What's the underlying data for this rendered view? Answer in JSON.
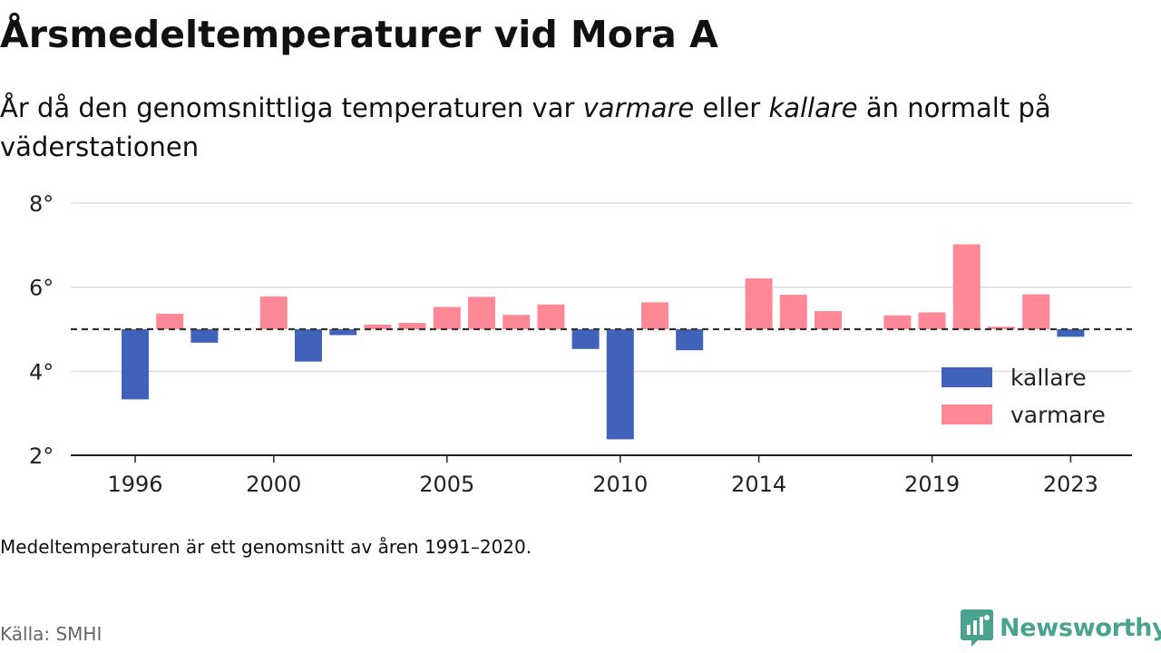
{
  "title": "Årsmedeltemperaturer vid Mora A",
  "subtitle": {
    "part1": "År då den genomsnittliga temperaturen var ",
    "em1": "varmare",
    "part2": " eller ",
    "em2": "kallare",
    "part3": " än normalt på väderstationen"
  },
  "note": "Medeltemperaturen är ett genomsnitt av åren 1991–2020.",
  "source": "Källa: SMHI",
  "brand": {
    "name": "Newsworthy",
    "icon": "newsworthy-logo-icon",
    "color": "#4aa38f"
  },
  "colors": {
    "kallare": "#4062bb",
    "varmare": "#ff8896",
    "baseline": "#333333",
    "grid": "#dddddd",
    "axis": "#222222"
  },
  "chart_data": {
    "type": "bar",
    "baseline": 5.0,
    "ylim": [
      2,
      8
    ],
    "yticks": [
      2,
      4,
      6,
      8
    ],
    "ytick_labels": [
      "2°",
      "4°",
      "6°",
      "8°"
    ],
    "xticks": [
      1996,
      2000,
      2005,
      2010,
      2014,
      2019,
      2023
    ],
    "legend": {
      "position": "right",
      "entries": [
        {
          "key": "kallare",
          "label": "kallare"
        },
        {
          "key": "varmare",
          "label": "varmare"
        }
      ]
    },
    "series": [
      {
        "year": 1996,
        "value": 3.33
      },
      {
        "year": 1997,
        "value": 5.37
      },
      {
        "year": 1998,
        "value": 4.68
      },
      {
        "year": 1999,
        "value": null
      },
      {
        "year": 2000,
        "value": 5.78
      },
      {
        "year": 2001,
        "value": 4.23
      },
      {
        "year": 2002,
        "value": 4.86
      },
      {
        "year": 2003,
        "value": 5.11
      },
      {
        "year": 2004,
        "value": 5.15
      },
      {
        "year": 2005,
        "value": 5.53
      },
      {
        "year": 2006,
        "value": 5.77
      },
      {
        "year": 2007,
        "value": 5.34
      },
      {
        "year": 2008,
        "value": 5.59
      },
      {
        "year": 2009,
        "value": 4.53
      },
      {
        "year": 2010,
        "value": 2.38
      },
      {
        "year": 2011,
        "value": 5.64
      },
      {
        "year": 2012,
        "value": 4.5
      },
      {
        "year": 2013,
        "value": null
      },
      {
        "year": 2014,
        "value": 6.21
      },
      {
        "year": 2015,
        "value": 5.82
      },
      {
        "year": 2016,
        "value": 5.43
      },
      {
        "year": 2017,
        "value": null
      },
      {
        "year": 2018,
        "value": 5.33
      },
      {
        "year": 2019,
        "value": 5.4
      },
      {
        "year": 2020,
        "value": 7.02
      },
      {
        "year": 2021,
        "value": 5.06
      },
      {
        "year": 2022,
        "value": 5.83
      },
      {
        "year": 2023,
        "value": 4.82
      }
    ]
  }
}
